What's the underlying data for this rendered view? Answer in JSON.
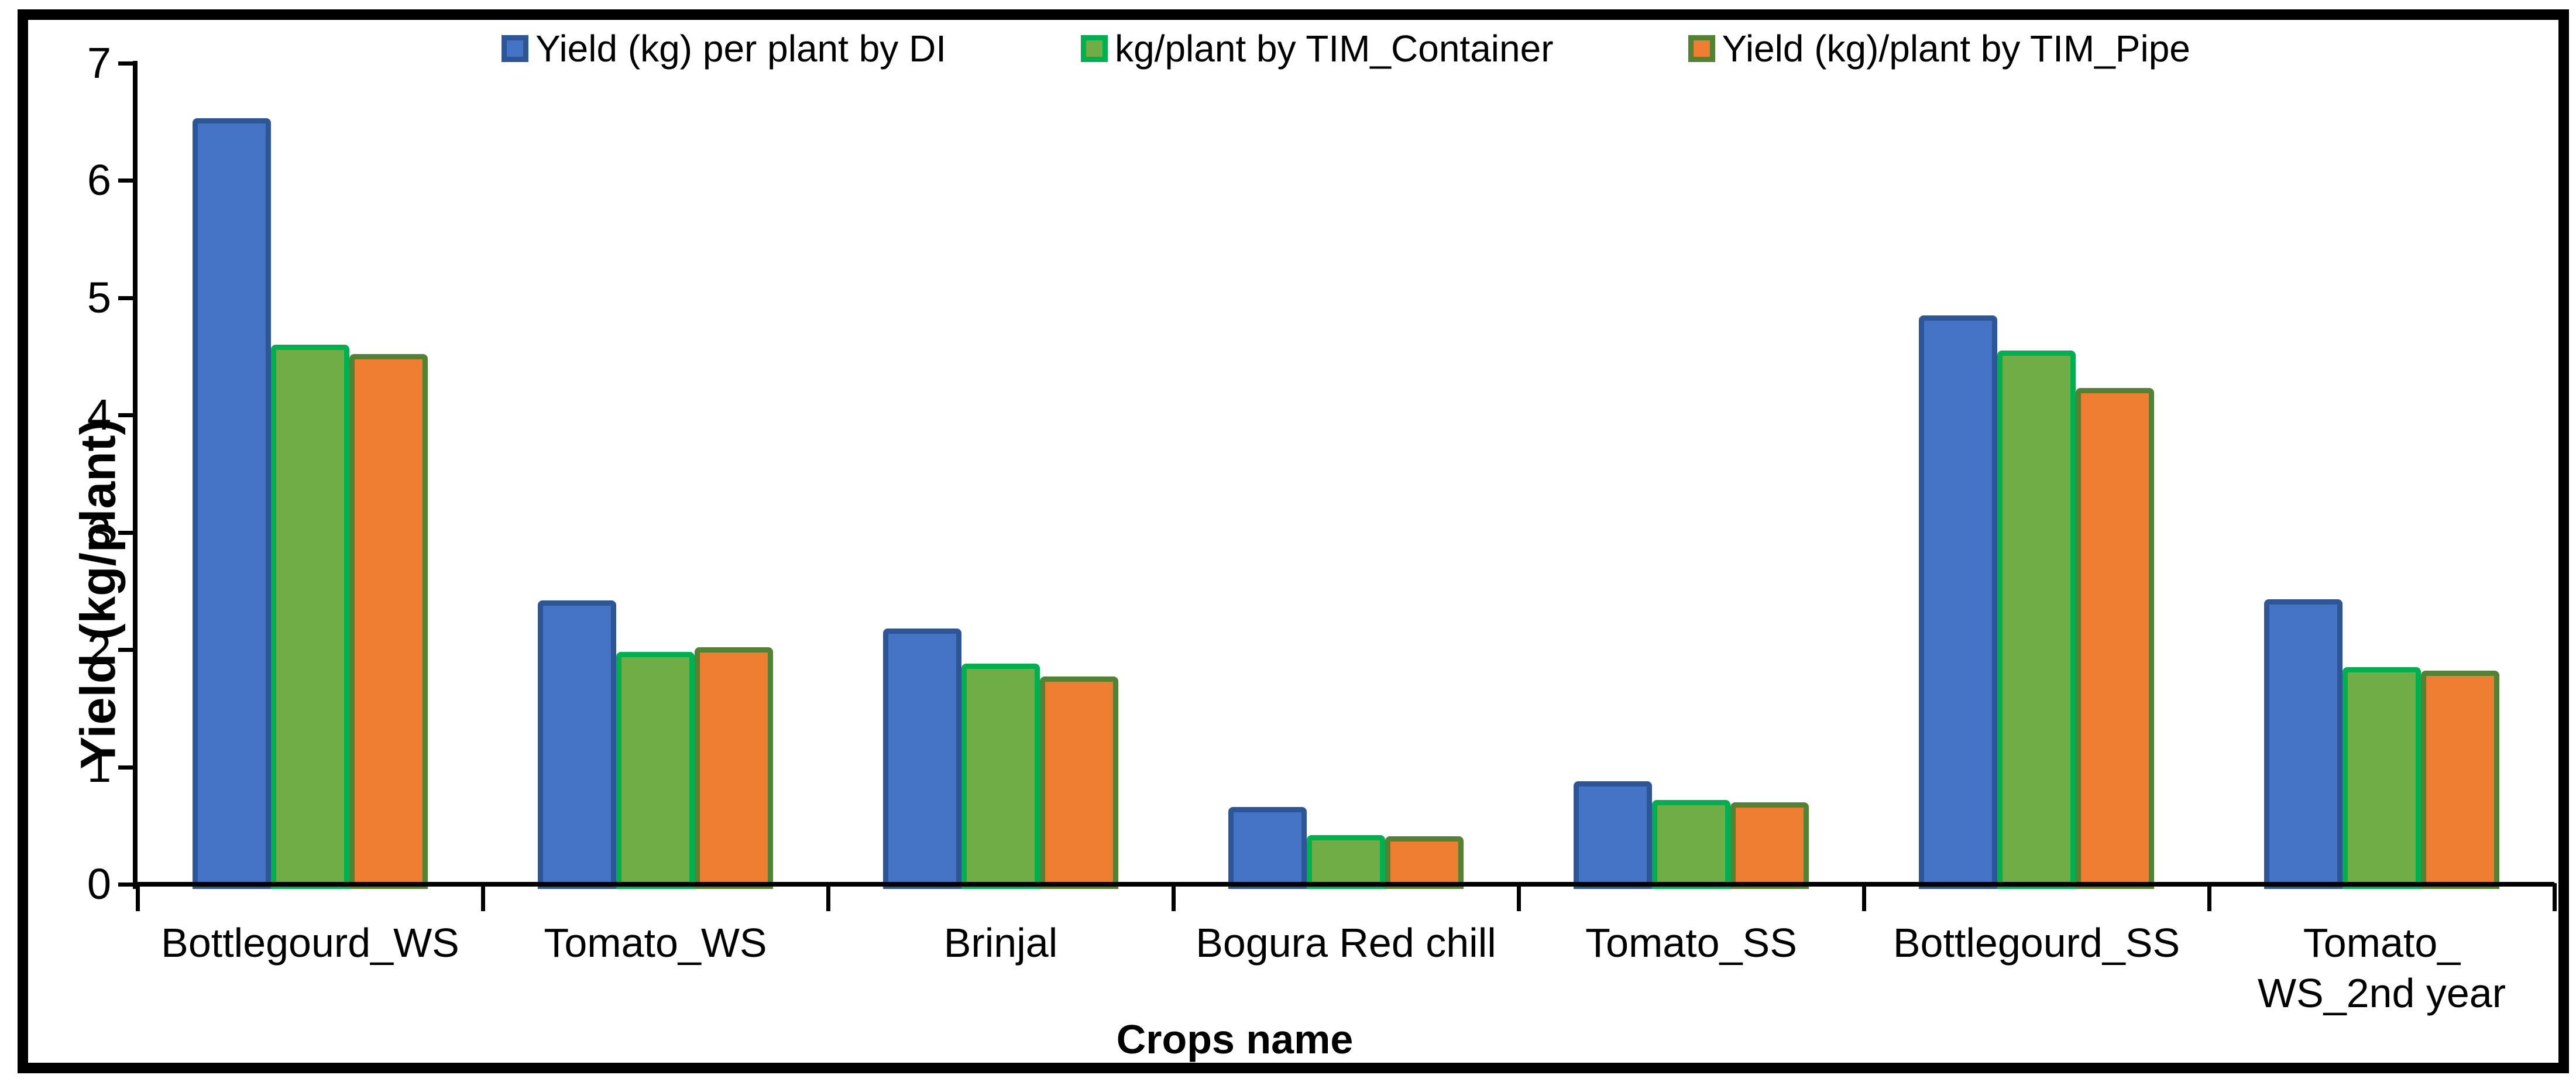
{
  "chart_data": {
    "type": "bar",
    "title": "",
    "categories": [
      "Bottlegourd_WS",
      "Tomato_WS",
      "Brinjal",
      "Bogura Red chill",
      "Tomato_SS",
      "Bottlegourd_SS",
      "Tomato_\nWS_2nd year"
    ],
    "series": [
      {
        "name": "Yield (kg) per plant by DI",
        "fill": "#4472C4",
        "border": "#2E5596",
        "values": [
          6.53,
          2.42,
          2.18,
          0.66,
          0.88,
          4.85,
          2.43
        ]
      },
      {
        "name": "kg/plant by TIM_Container",
        "fill": "#70AD47",
        "border": "#00B050",
        "values": [
          4.6,
          1.98,
          1.88,
          0.42,
          0.72,
          4.55,
          1.85
        ]
      },
      {
        "name": "Yield (kg)/plant by TIM_Pipe",
        "fill": "#ED7D31",
        "border": "#548235",
        "values": [
          4.52,
          2.02,
          1.77,
          0.41,
          0.7,
          4.23,
          1.82
        ]
      }
    ],
    "xlabel": "Crops name",
    "ylabel": "Yield (kg/plant)",
    "ylim": [
      0,
      7
    ],
    "yticks": [
      0,
      1,
      2,
      3,
      4,
      5,
      6,
      7
    ],
    "legend_position": "top",
    "grid": false,
    "axis_color": "#000000",
    "background_color": "#FFFFFF"
  }
}
